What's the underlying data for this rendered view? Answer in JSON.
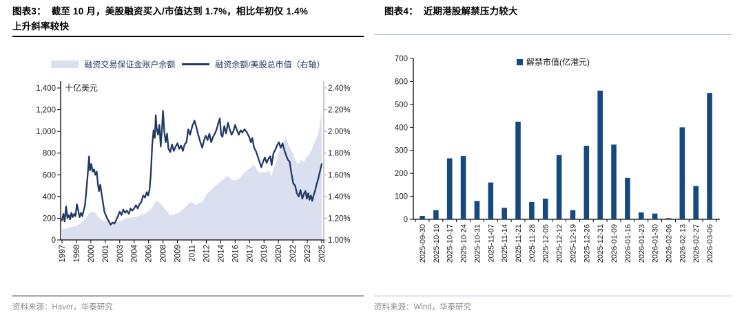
{
  "left_panel": {
    "title_line1": "图表3：  截至 10 月，美股融资买入/市值达到 1.7%，相比年初仅 1.4%",
    "title_line2": "上升斜率较快",
    "legend_area_label": "融资交易保证金账户余额",
    "legend_line_label": "融资余额/美股总市值（右轴）",
    "source": "资料来源：Haver，华泰研究"
  },
  "right_panel": {
    "title": "图表4：  近期港股解禁压力较大",
    "legend_label": "解禁市值(亿港元)",
    "source": "资料来源：Wind，华泰研究"
  },
  "colors": {
    "line": "#1f3864",
    "area": "#dbe0f0",
    "bar": "#154980",
    "axis_dark": "#000000",
    "axis_gray": "#a6a6a6",
    "tick_text": "#1a1a1a"
  },
  "chart_data": [
    {
      "type": "area",
      "title": "图表3：截至 10 月，美股融资买入/市值达到 1.7%，相比年初仅 1.4% 上升斜率较快",
      "y_left": {
        "unit": "十亿美元",
        "min": 0,
        "max": 1400,
        "step": 200,
        "tick_labels": [
          "0",
          "200",
          "400",
          "600",
          "800",
          "1,000",
          "1,200",
          "1,400"
        ]
      },
      "y_right": {
        "min": 1.0,
        "max": 2.4,
        "step": 0.2,
        "tick_labels": [
          "1.00%",
          "1.20%",
          "1.40%",
          "1.60%",
          "1.80%",
          "2.00%",
          "2.20%",
          "2.40%"
        ]
      },
      "x_range": [
        1997.0,
        2025.8
      ],
      "x_tick_labels": [
        "1997",
        "1998",
        "2000",
        "2001",
        "2003",
        "2004",
        "2006",
        "2008",
        "2009",
        "2011",
        "2012",
        "2014",
        "2016",
        "2017",
        "2019",
        "2020",
        "2022",
        "2023",
        "2025"
      ],
      "legend_position": "top",
      "grid": false,
      "series": [
        {
          "name": "融资交易保证金账户余额",
          "type": "area",
          "axis": "left",
          "points": [
            [
              1997.0,
              95
            ],
            [
              1997.5,
              105
            ],
            [
              1998.0,
              118
            ],
            [
              1998.5,
              128
            ],
            [
              1999.0,
              148
            ],
            [
              1999.5,
              185
            ],
            [
              2000.0,
              245
            ],
            [
              2000.3,
              265
            ],
            [
              2000.7,
              248
            ],
            [
              2001.0,
              215
            ],
            [
              2001.5,
              178
            ],
            [
              2002.0,
              170
            ],
            [
              2002.5,
              158
            ],
            [
              2003.0,
              163
            ],
            [
              2003.5,
              175
            ],
            [
              2004.0,
              198
            ],
            [
              2004.5,
              205
            ],
            [
              2005.0,
              210
            ],
            [
              2005.5,
              222
            ],
            [
              2006.0,
              235
            ],
            [
              2006.5,
              258
            ],
            [
              2007.0,
              300
            ],
            [
              2007.5,
              365
            ],
            [
              2008.0,
              330
            ],
            [
              2008.5,
              278
            ],
            [
              2009.0,
              225
            ],
            [
              2009.5,
              235
            ],
            [
              2010.0,
              255
            ],
            [
              2010.5,
              288
            ],
            [
              2011.0,
              330
            ],
            [
              2011.4,
              350
            ],
            [
              2011.8,
              325
            ],
            [
              2012.2,
              340
            ],
            [
              2012.6,
              352
            ],
            [
              2013.0,
              420
            ],
            [
              2013.5,
              460
            ],
            [
              2014.0,
              500
            ],
            [
              2014.5,
              532
            ],
            [
              2015.0,
              570
            ],
            [
              2015.4,
              590
            ],
            [
              2015.8,
              555
            ],
            [
              2016.2,
              548
            ],
            [
              2016.6,
              562
            ],
            [
              2017.0,
              600
            ],
            [
              2017.5,
              642
            ],
            [
              2018.0,
              672
            ],
            [
              2018.3,
              695
            ],
            [
              2018.6,
              650
            ],
            [
              2018.9,
              618
            ],
            [
              2019.3,
              628
            ],
            [
              2019.7,
              618
            ],
            [
              2020.0,
              640
            ],
            [
              2020.2,
              580
            ],
            [
              2020.5,
              662
            ],
            [
              2020.8,
              720
            ],
            [
              2021.0,
              798
            ],
            [
              2021.3,
              862
            ],
            [
              2021.6,
              912
            ],
            [
              2021.8,
              948
            ],
            [
              2022.0,
              902
            ],
            [
              2022.3,
              845
            ],
            [
              2022.6,
              800
            ],
            [
              2022.9,
              732
            ],
            [
              2023.2,
              698
            ],
            [
              2023.5,
              742
            ],
            [
              2023.8,
              718
            ],
            [
              2024.1,
              762
            ],
            [
              2024.4,
              790
            ],
            [
              2024.7,
              828
            ],
            [
              2025.0,
              900
            ],
            [
              2025.2,
              932
            ],
            [
              2025.4,
              980
            ],
            [
              2025.55,
              1040
            ],
            [
              2025.7,
              1120
            ],
            [
              2025.8,
              1190
            ]
          ]
        },
        {
          "name": "融资余额/美股总市值（右轴）",
          "type": "line",
          "axis": "right",
          "points": [
            [
              1997.0,
              1.18
            ],
            [
              1997.15,
              1.24
            ],
            [
              1997.3,
              1.17
            ],
            [
              1997.45,
              1.31
            ],
            [
              1997.6,
              1.2
            ],
            [
              1997.75,
              1.23
            ],
            [
              1997.9,
              1.19
            ],
            [
              1998.05,
              1.25
            ],
            [
              1998.2,
              1.21
            ],
            [
              1998.35,
              1.24
            ],
            [
              1998.5,
              1.22
            ],
            [
              1998.65,
              1.33
            ],
            [
              1998.8,
              1.27
            ],
            [
              1998.95,
              1.21
            ],
            [
              1999.1,
              1.25
            ],
            [
              1999.25,
              1.22
            ],
            [
              1999.4,
              1.27
            ],
            [
              1999.55,
              1.32
            ],
            [
              1999.7,
              1.45
            ],
            [
              1999.85,
              1.6
            ],
            [
              2000.0,
              1.77
            ],
            [
              2000.1,
              1.64
            ],
            [
              2000.25,
              1.7
            ],
            [
              2000.4,
              1.63
            ],
            [
              2000.55,
              1.65
            ],
            [
              2000.7,
              1.6
            ],
            [
              2000.85,
              1.63
            ],
            [
              2001.0,
              1.5
            ],
            [
              2001.1,
              1.45
            ],
            [
              2001.25,
              1.51
            ],
            [
              2001.4,
              1.42
            ],
            [
              2001.55,
              1.34
            ],
            [
              2001.7,
              1.26
            ],
            [
              2001.85,
              1.23
            ],
            [
              2002.0,
              1.2
            ],
            [
              2002.2,
              1.17
            ],
            [
              2002.4,
              1.14
            ],
            [
              2002.6,
              1.16
            ],
            [
              2002.8,
              1.15
            ],
            [
              2003.0,
              1.18
            ],
            [
              2003.2,
              1.22
            ],
            [
              2003.4,
              1.26
            ],
            [
              2003.6,
              1.23
            ],
            [
              2003.8,
              1.28
            ],
            [
              2004.0,
              1.25
            ],
            [
              2004.2,
              1.27
            ],
            [
              2004.4,
              1.24
            ],
            [
              2004.6,
              1.29
            ],
            [
              2004.8,
              1.27
            ],
            [
              2005.0,
              1.29
            ],
            [
              2005.2,
              1.32
            ],
            [
              2005.4,
              1.29
            ],
            [
              2005.6,
              1.33
            ],
            [
              2005.8,
              1.35
            ],
            [
              2006.0,
              1.41
            ],
            [
              2006.2,
              1.39
            ],
            [
              2006.4,
              1.44
            ],
            [
              2006.55,
              1.41
            ],
            [
              2006.7,
              1.46
            ],
            [
              2006.85,
              1.6
            ],
            [
              2007.0,
              1.87
            ],
            [
              2007.15,
              2.01
            ],
            [
              2007.3,
              1.94
            ],
            [
              2007.4,
              2.15
            ],
            [
              2007.5,
              2.03
            ],
            [
              2007.65,
              1.97
            ],
            [
              2007.8,
              2.06
            ],
            [
              2007.95,
              1.86
            ],
            [
              2008.1,
              2.04
            ],
            [
              2008.2,
              2.19
            ],
            [
              2008.35,
              1.99
            ],
            [
              2008.5,
              1.9
            ],
            [
              2008.65,
              1.98
            ],
            [
              2008.8,
              1.84
            ],
            [
              2009.0,
              1.81
            ],
            [
              2009.2,
              1.88
            ],
            [
              2009.4,
              1.82
            ],
            [
              2009.6,
              1.86
            ],
            [
              2009.8,
              1.89
            ],
            [
              2010.0,
              1.84
            ],
            [
              2010.2,
              1.87
            ],
            [
              2010.4,
              1.82
            ],
            [
              2010.6,
              1.88
            ],
            [
              2010.8,
              1.9
            ],
            [
              2011.0,
              2.02
            ],
            [
              2011.2,
              1.97
            ],
            [
              2011.45,
              2.05
            ],
            [
              2011.7,
              2.1
            ],
            [
              2011.9,
              2.04
            ],
            [
              2012.1,
              1.97
            ],
            [
              2012.35,
              1.9
            ],
            [
              2012.55,
              1.85
            ],
            [
              2012.75,
              1.92
            ],
            [
              2012.95,
              1.96
            ],
            [
              2013.15,
              1.92
            ],
            [
              2013.35,
              1.98
            ],
            [
              2013.55,
              1.9
            ],
            [
              2013.75,
              1.95
            ],
            [
              2013.95,
              1.98
            ],
            [
              2014.15,
              2.02
            ],
            [
              2014.35,
              2.08
            ],
            [
              2014.5,
              2.12
            ],
            [
              2014.65,
              1.97
            ],
            [
              2014.8,
              1.95
            ],
            [
              2015.0,
              2.05
            ],
            [
              2015.2,
              1.98
            ],
            [
              2015.4,
              2.08
            ],
            [
              2015.6,
              2.02
            ],
            [
              2015.8,
              1.97
            ],
            [
              2016.0,
              2.0
            ],
            [
              2016.2,
              2.06
            ],
            [
              2016.4,
              2.01
            ],
            [
              2016.6,
              1.97
            ],
            [
              2016.8,
              2.01
            ],
            [
              2017.0,
              1.99
            ],
            [
              2017.25,
              2.02
            ],
            [
              2017.5,
              1.99
            ],
            [
              2017.75,
              1.95
            ],
            [
              2017.95,
              1.9
            ],
            [
              2018.1,
              1.94
            ],
            [
              2018.3,
              1.85
            ],
            [
              2018.5,
              1.82
            ],
            [
              2018.7,
              1.77
            ],
            [
              2018.9,
              1.72
            ],
            [
              2019.1,
              1.67
            ],
            [
              2019.3,
              1.72
            ],
            [
              2019.5,
              1.76
            ],
            [
              2019.7,
              1.71
            ],
            [
              2019.9,
              1.75
            ],
            [
              2020.1,
              1.77
            ],
            [
              2020.25,
              1.69
            ],
            [
              2020.45,
              1.8
            ],
            [
              2020.65,
              1.83
            ],
            [
              2020.85,
              1.87
            ],
            [
              2021.05,
              1.9
            ],
            [
              2021.25,
              1.85
            ],
            [
              2021.45,
              1.89
            ],
            [
              2021.65,
              1.83
            ],
            [
              2021.85,
              1.78
            ],
            [
              2022.05,
              1.74
            ],
            [
              2022.25,
              1.72
            ],
            [
              2022.45,
              1.61
            ],
            [
              2022.65,
              1.52
            ],
            [
              2022.85,
              1.5
            ],
            [
              2023.05,
              1.43
            ],
            [
              2023.25,
              1.4
            ],
            [
              2023.45,
              1.46
            ],
            [
              2023.65,
              1.38
            ],
            [
              2023.85,
              1.43
            ],
            [
              2024.0,
              1.45
            ],
            [
              2024.15,
              1.38
            ],
            [
              2024.3,
              1.43
            ],
            [
              2024.45,
              1.37
            ],
            [
              2024.6,
              1.41
            ],
            [
              2024.75,
              1.36
            ],
            [
              2024.9,
              1.41
            ],
            [
              2025.05,
              1.45
            ],
            [
              2025.2,
              1.5
            ],
            [
              2025.4,
              1.56
            ],
            [
              2025.6,
              1.63
            ],
            [
              2025.8,
              1.7
            ]
          ]
        }
      ]
    },
    {
      "type": "bar",
      "title": "图表4：近期港股解禁压力较大",
      "legend": "解禁市值(亿港元)",
      "ylim": [
        0,
        700
      ],
      "y_step": 100,
      "y_tick_labels": [
        "0",
        "100",
        "200",
        "300",
        "400",
        "500",
        "600",
        "700"
      ],
      "grid": false,
      "categories": [
        "2025-09-30",
        "2025-10-10",
        "2025-10-17",
        "2025-10-24",
        "2025-10-31",
        "2025-11-07",
        "2025-11-14",
        "2025-11-21",
        "2025-11-28",
        "2025-12-05",
        "2025-12-12",
        "2025-12-19",
        "2025-12-26",
        "2025-12-31",
        "2026-01-09",
        "2026-01-16",
        "2026-01-23",
        "2026-01-30",
        "2026-02-06",
        "2026-02-13",
        "2026-02-27",
        "2026-03-06"
      ],
      "values": [
        15,
        40,
        265,
        275,
        80,
        160,
        50,
        425,
        75,
        90,
        280,
        40,
        320,
        560,
        325,
        180,
        30,
        25,
        5,
        400,
        145,
        550
      ]
    }
  ]
}
